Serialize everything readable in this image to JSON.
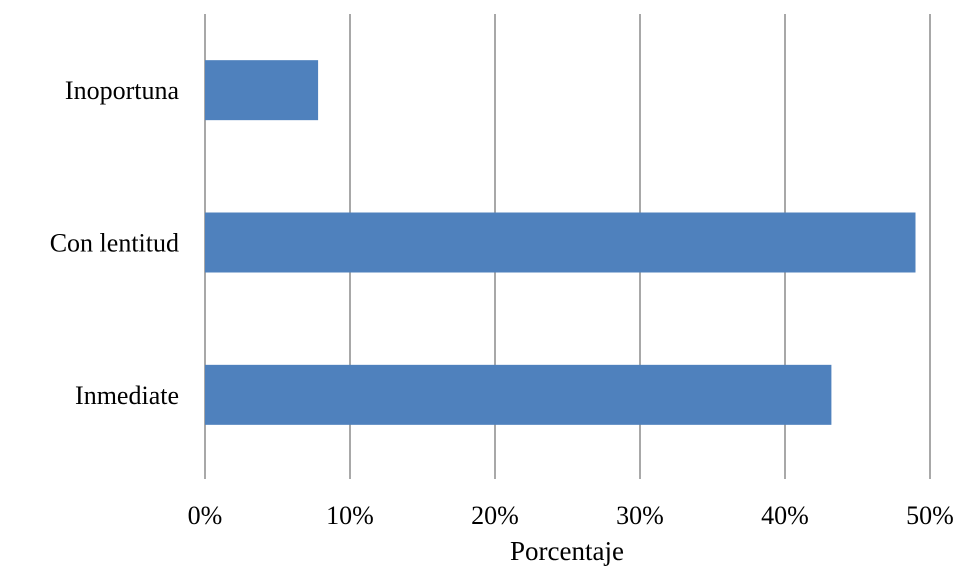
{
  "chart_data": {
    "type": "bar",
    "orientation": "horizontal",
    "categories": [
      "Inoportuna",
      "Con lentitud",
      "Inmediate"
    ],
    "values": [
      7.8,
      49.0,
      43.2
    ],
    "xlabel": "Porcentaje",
    "ylabel": "",
    "xlim": [
      0,
      50
    ],
    "x_ticks": [
      "0%",
      "10%",
      "20%",
      "30%",
      "40%",
      "50%"
    ],
    "grid": "vertical",
    "legend": "none",
    "bar_color": "#4F81BD"
  }
}
